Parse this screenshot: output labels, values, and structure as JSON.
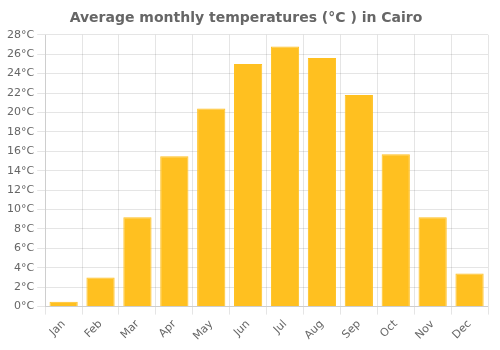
{
  "chart_data": {
    "type": "bar",
    "title": "Average monthly temperatures (°C ) in Cairo",
    "categories": [
      "Jan",
      "Feb",
      "Mar",
      "Apr",
      "May",
      "Jun",
      "Jul",
      "Aug",
      "Sep",
      "Oct",
      "Nov",
      "Dec"
    ],
    "values": [
      0.5,
      3.0,
      9.2,
      15.5,
      20.4,
      25.0,
      26.8,
      25.6,
      21.8,
      15.7,
      9.2,
      3.4
    ],
    "color": "#FFC020",
    "ylim": [
      0,
      28
    ],
    "yticks": [
      {
        "value": 0,
        "label": "0°C"
      },
      {
        "value": 2,
        "label": "2°C"
      },
      {
        "value": 4,
        "label": "4°C"
      },
      {
        "value": 6,
        "label": "6°C"
      },
      {
        "value": 8,
        "label": "8°C"
      },
      {
        "value": 10,
        "label": "10°C"
      },
      {
        "value": 12,
        "label": "12°C"
      },
      {
        "value": 14,
        "label": "14°C"
      },
      {
        "value": 16,
        "label": "16°C"
      },
      {
        "value": 18,
        "label": "18°C"
      },
      {
        "value": 20,
        "label": "20°C"
      },
      {
        "value": 22,
        "label": "22°C"
      },
      {
        "value": 24,
        "label": "24°C"
      },
      {
        "value": 26,
        "label": "26°C"
      },
      {
        "value": 28,
        "label": "28°C"
      }
    ],
    "grid": true
  }
}
